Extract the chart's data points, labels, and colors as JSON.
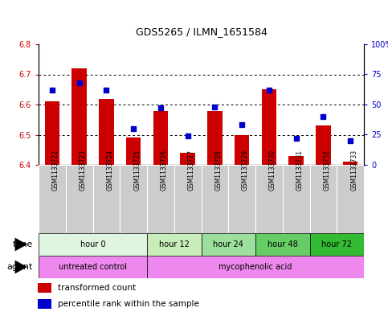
{
  "title": "GDS5265 / ILMN_1651584",
  "samples": [
    "GSM1133722",
    "GSM1133723",
    "GSM1133724",
    "GSM1133725",
    "GSM1133726",
    "GSM1133727",
    "GSM1133728",
    "GSM1133729",
    "GSM1133730",
    "GSM1133731",
    "GSM1133732",
    "GSM1133733"
  ],
  "bar_values": [
    6.61,
    6.72,
    6.62,
    6.49,
    6.58,
    6.44,
    6.58,
    6.5,
    6.65,
    6.43,
    6.53,
    6.41
  ],
  "bar_base": 6.4,
  "percentile_values": [
    62,
    68,
    62,
    30,
    47,
    24,
    48,
    33,
    62,
    22,
    40,
    20
  ],
  "ylim": [
    6.4,
    6.8
  ],
  "y2lim": [
    0,
    100
  ],
  "yticks": [
    6.4,
    6.5,
    6.6,
    6.7,
    6.8
  ],
  "y2ticks": [
    0,
    25,
    50,
    75,
    100
  ],
  "y2ticklabels": [
    "0",
    "25",
    "50",
    "75",
    "100%"
  ],
  "bar_color": "#cc0000",
  "dot_color": "#0000cc",
  "time_colors": [
    "#e0f5e0",
    "#c8edb8",
    "#9de09d",
    "#66cc66",
    "#33bb33"
  ],
  "agent_color_left": "#ee88ee",
  "agent_color_right": "#ee88ee",
  "sample_cell_color": "#cccccc",
  "time_groups": [
    {
      "label": "hour 0",
      "start": 0,
      "end": 4
    },
    {
      "label": "hour 12",
      "start": 4,
      "end": 6
    },
    {
      "label": "hour 24",
      "start": 6,
      "end": 8
    },
    {
      "label": "hour 48",
      "start": 8,
      "end": 10
    },
    {
      "label": "hour 72",
      "start": 10,
      "end": 12
    }
  ],
  "agent_groups": [
    {
      "label": "untreated control",
      "start": 0,
      "end": 4
    },
    {
      "label": "mycophenolic acid",
      "start": 4,
      "end": 12
    }
  ]
}
